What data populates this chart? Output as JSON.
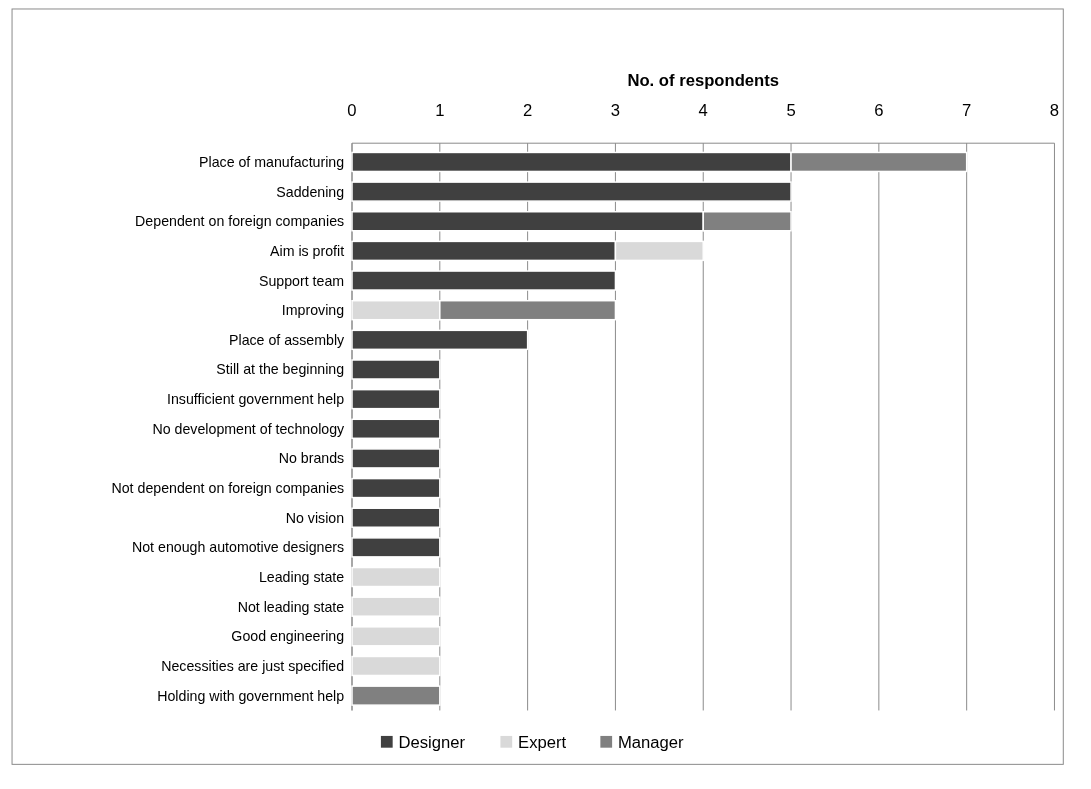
{
  "chart_data": {
    "type": "bar",
    "orientation": "horizontal",
    "stacked": true,
    "xlabel": "No. of respondents",
    "categories": [
      "Place of manufacturing",
      "Saddening",
      "Dependent on foreign companies",
      "Aim is profit",
      "Support team",
      "Improving",
      "Place of assembly",
      "Still at the beginning",
      "Insufficient government help",
      "No development of technology",
      "No brands",
      "Not dependent on foreign companies",
      "No vision",
      "Not enough automotive designers",
      "Leading state",
      "Not leading state",
      "Good engineering",
      "Necessities are just specified",
      "Holding with government help"
    ],
    "series": [
      {
        "name": "Designer",
        "color": "#404040",
        "values": [
          5,
          5,
          4,
          3,
          3,
          null,
          2,
          1,
          1,
          1,
          1,
          1,
          1,
          1,
          null,
          null,
          null,
          null,
          null
        ]
      },
      {
        "name": "Expert",
        "color": "#d9d9d9",
        "values": [
          null,
          null,
          null,
          1,
          null,
          1,
          null,
          null,
          null,
          null,
          null,
          null,
          null,
          null,
          1,
          1,
          1,
          1,
          null
        ]
      },
      {
        "name": "Manager",
        "color": "#808080",
        "values": [
          2,
          null,
          1,
          null,
          null,
          2,
          null,
          null,
          null,
          null,
          null,
          null,
          null,
          null,
          null,
          null,
          null,
          null,
          1
        ]
      }
    ],
    "xlim": [
      0,
      8
    ],
    "xticks": [
      0,
      1,
      2,
      3,
      4,
      5,
      6,
      7,
      8
    ],
    "grid": "x",
    "legend": "bottom"
  }
}
